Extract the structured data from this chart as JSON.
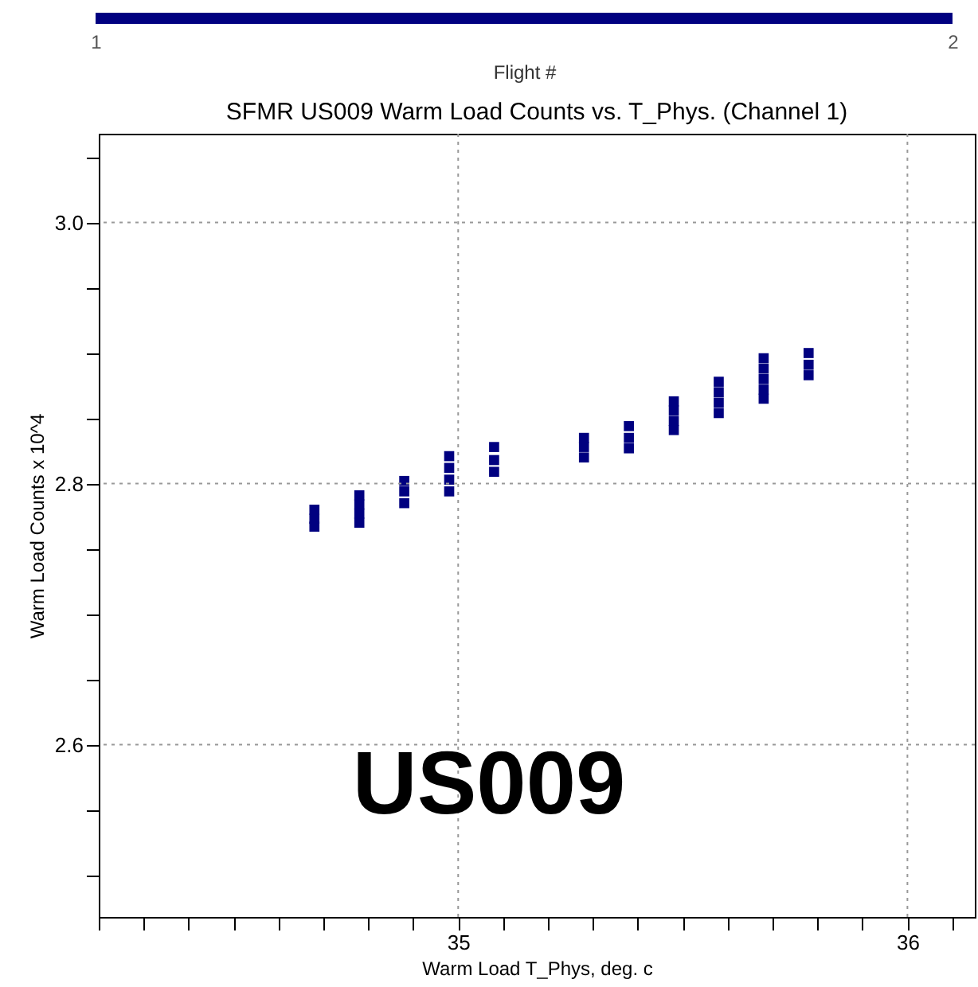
{
  "chart_data": {
    "type": "scatter",
    "title": "SFMR US009 Warm Load Counts vs. T_Phys. (Channel 1)",
    "xlabel": "Warm Load T_Phys, deg. c",
    "ylabel": "Warm Load Counts x 10^4",
    "x": [
      34.68,
      34.68,
      34.68,
      34.78,
      34.78,
      34.78,
      34.78,
      34.88,
      34.88,
      34.88,
      34.98,
      34.98,
      34.98,
      34.98,
      35.08,
      35.08,
      35.08,
      35.28,
      35.28,
      35.28,
      35.38,
      35.38,
      35.38,
      35.48,
      35.48,
      35.48,
      35.48,
      35.58,
      35.58,
      35.58,
      35.58,
      35.68,
      35.68,
      35.68,
      35.68,
      35.68,
      35.78,
      35.78,
      35.78
    ],
    "series": [
      {
        "color": "#000080",
        "values": [
          2.78,
          2.773,
          2.767,
          2.791,
          2.784,
          2.777,
          2.77,
          2.802,
          2.794,
          2.785,
          2.821,
          2.812,
          2.803,
          2.794,
          2.828,
          2.818,
          2.809,
          2.835,
          2.828,
          2.82,
          2.844,
          2.835,
          2.827,
          2.863,
          2.856,
          2.848,
          2.841,
          2.878,
          2.87,
          2.862,
          2.854,
          2.896,
          2.888,
          2.88,
          2.872,
          2.865,
          2.9,
          2.891,
          2.883
        ]
      }
    ],
    "x2lim": [
      1,
      2
    ],
    "x2ticks": [
      1,
      2
    ],
    "x2label": "Flight #",
    "xlim": [
      34.2,
      36.15
    ],
    "ylim": [
      2.468,
      3.068
    ],
    "xticks": [
      {
        "value": 34.2,
        "label": null
      },
      {
        "value": 34.3,
        "label": null
      },
      {
        "value": 34.4,
        "label": null
      },
      {
        "value": 34.5,
        "label": null
      },
      {
        "value": 34.6,
        "label": null
      },
      {
        "value": 34.7,
        "label": null
      },
      {
        "value": 34.8,
        "label": null
      },
      {
        "value": 34.9,
        "label": null
      },
      35,
      {
        "value": 35.1,
        "label": null
      },
      {
        "value": 35.2,
        "label": null
      },
      {
        "value": 35.3,
        "label": null
      },
      {
        "value": 35.4,
        "label": null
      },
      {
        "value": 35.5,
        "label": null
      },
      {
        "value": 35.6,
        "label": null
      },
      {
        "value": 35.7,
        "label": null
      },
      {
        "value": 35.8,
        "label": null
      },
      {
        "value": 35.9,
        "label": null
      },
      36,
      {
        "value": 36.1,
        "label": null
      }
    ],
    "yticks": [
      {
        "value": 2.5,
        "label": null
      },
      {
        "value": 2.55,
        "label": null
      },
      {
        "value": 2.6,
        "label": "2.6"
      },
      {
        "value": 2.65,
        "label": null
      },
      {
        "value": 2.7,
        "label": null
      },
      {
        "value": 2.75,
        "label": null
      },
      {
        "value": 2.8,
        "label": "2.8"
      },
      {
        "value": 2.85,
        "label": null
      },
      {
        "value": 2.9,
        "label": null
      },
      {
        "value": 2.95,
        "label": null
      },
      {
        "value": 3.0,
        "label": "3.0"
      },
      {
        "value": 3.05,
        "label": null
      }
    ],
    "grid": true,
    "marker": "square",
    "annotations": [
      "US009"
    ]
  }
}
